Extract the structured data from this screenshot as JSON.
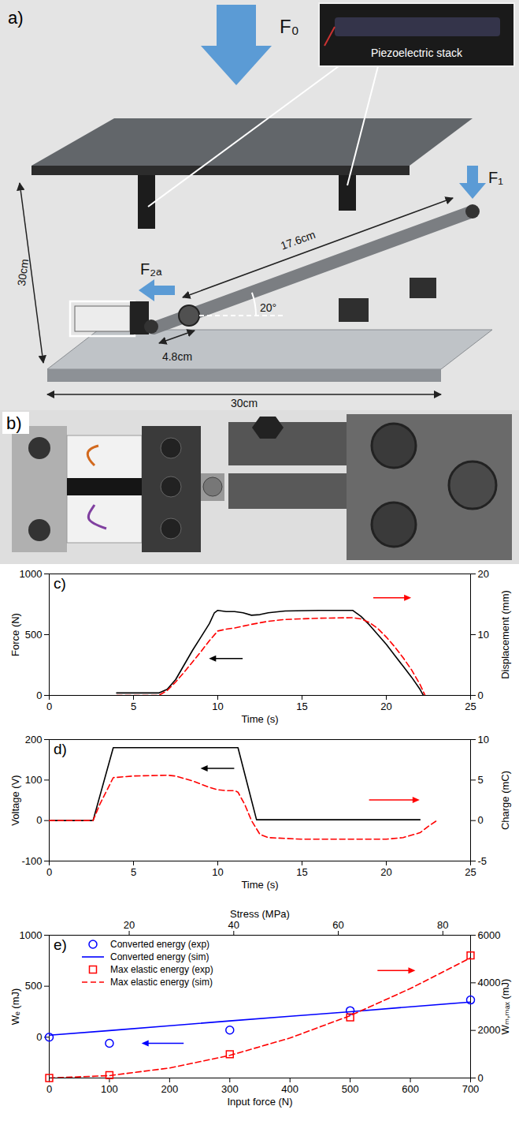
{
  "panel_a": {
    "letter": "a)",
    "force_labels": [
      "F₀",
      "F₁",
      "F₂ₐ"
    ],
    "inset_label": "Piezoelectric stack",
    "width_label": "30cm",
    "depth_label": "30cm",
    "long_arm_label": "17.6cm",
    "short_arm_label": "4.8cm",
    "angle_label": "20°"
  },
  "panel_b": {
    "letter": "b)"
  },
  "chart_data": [
    {
      "panel_label": "c)",
      "type": "line",
      "xlabel": "Time (s)",
      "xlim": [
        0,
        25
      ],
      "xticks": [
        0,
        5,
        10,
        15,
        20,
        25
      ],
      "ylabel": "Force (N)",
      "ylim": [
        0,
        1000
      ],
      "yticks": [
        0,
        500,
        1000
      ],
      "y2label": "Displacement (mm)",
      "y2lim": [
        0,
        20
      ],
      "y2ticks": [
        0,
        10,
        20
      ],
      "series": [
        {
          "color": "#000000",
          "line_style": "solid",
          "x": [
            4,
            6.5,
            7,
            7.5,
            8,
            8.5,
            9,
            9.5,
            9.8,
            10,
            10.5,
            11,
            11.5,
            12,
            12.5,
            13,
            14,
            16,
            18,
            18.5,
            19,
            19.5,
            20,
            20.5,
            21,
            21.5,
            22,
            22.2
          ],
          "values": [
            20,
            20,
            50,
            130,
            250,
            370,
            480,
            590,
            680,
            700,
            690,
            690,
            680,
            660,
            665,
            680,
            695,
            700,
            700,
            650,
            580,
            500,
            420,
            330,
            240,
            150,
            50,
            0
          ]
        },
        {
          "color": "#ff0000",
          "line_style": "dashed",
          "axis": "y2",
          "x": [
            4,
            6.5,
            7,
            7.5,
            8,
            8.5,
            9,
            9.5,
            10,
            10.5,
            11,
            12,
            13,
            14,
            16,
            18,
            18.5,
            19,
            19.5,
            20,
            20.5,
            21,
            21.5,
            22,
            22.3
          ],
          "values": [
            0,
            0,
            0.8,
            2.2,
            3.8,
            5.5,
            7.2,
            9,
            10.6,
            10.9,
            11.1,
            11.7,
            12.2,
            12.5,
            12.7,
            12.8,
            12.6,
            12,
            11,
            9.6,
            8,
            6.2,
            4.2,
            1.8,
            0
          ]
        }
      ]
    },
    {
      "panel_label": "d)",
      "type": "line",
      "xlabel": "Time (s)",
      "xlim": [
        0,
        25
      ],
      "xticks": [
        0,
        5,
        10,
        15,
        20,
        25
      ],
      "ylabel": "Voltage (V)",
      "ylim": [
        -100,
        200
      ],
      "yticks": [
        -100,
        0,
        100,
        200
      ],
      "y2label": "Charge (mC)",
      "y2lim": [
        -5,
        10
      ],
      "y2ticks": [
        -5,
        0,
        5,
        10
      ],
      "series": [
        {
          "color": "#000000",
          "line_style": "solid",
          "x": [
            0,
            2.6,
            3.8,
            11.2,
            12.3,
            22
          ],
          "values": [
            0,
            0,
            180,
            180,
            2,
            2
          ]
        },
        {
          "color": "#ff0000",
          "line_style": "dashed",
          "axis": "y2",
          "x": [
            0,
            2.6,
            3,
            3.8,
            5,
            7,
            7.5,
            8,
            8.5,
            9,
            9.5,
            10,
            10.5,
            11,
            11.2,
            11.6,
            12,
            12.5,
            13,
            15,
            20,
            21,
            22,
            22.5,
            23
          ],
          "values": [
            0,
            0,
            2,
            5.3,
            5.5,
            5.6,
            5.5,
            5.2,
            4.9,
            4.5,
            4.1,
            3.8,
            3.7,
            3.7,
            3.5,
            2,
            0,
            -1.7,
            -2.1,
            -2.3,
            -2.3,
            -2.1,
            -1.5,
            -0.7,
            0
          ]
        }
      ]
    },
    {
      "panel_label": "e)",
      "type": "line",
      "legend": "upper left",
      "xlabel": "Input force (N)",
      "xlim": [
        0,
        700
      ],
      "xticks": [
        0,
        100,
        200,
        300,
        400,
        500,
        600,
        700
      ],
      "x2label": "Stress (MPa)",
      "x2lim": [
        4.7,
        85.3
      ],
      "x2ticks": [
        20,
        40,
        60,
        80
      ],
      "ylabel": "Wₑ (mJ)",
      "ylim": [
        -400,
        1000
      ],
      "yticks": [
        0,
        500,
        1000
      ],
      "y2label": "Wₘ,ₘₐₓ (mJ)",
      "y2lim": [
        0,
        6000
      ],
      "y2ticks": [
        0,
        2000,
        4000,
        6000
      ],
      "series": [
        {
          "name": "Converted energy (exp)",
          "type": "scatter",
          "marker": "circle",
          "color": "#0000ff",
          "x": [
            0,
            100,
            300,
            500,
            700
          ],
          "values": [
            0,
            -60,
            70,
            260,
            365
          ]
        },
        {
          "name": "Converted energy (sim)",
          "type": "line",
          "line_style": "solid",
          "color": "#0000ff",
          "x": [
            0,
            100,
            200,
            300,
            400,
            500,
            600,
            700
          ],
          "values": [
            20,
            65,
            112,
            160,
            205,
            250,
            298,
            345
          ]
        },
        {
          "name": "Max elastic energy (exp)",
          "type": "scatter",
          "marker": "square",
          "color": "#ff0000",
          "axis": "y2",
          "x": [
            0,
            100,
            300,
            500,
            700
          ],
          "values": [
            0,
            120,
            1000,
            2550,
            5150
          ]
        },
        {
          "name": "Max elastic energy (sim)",
          "type": "line",
          "line_style": "dashed",
          "color": "#ff0000",
          "axis": "y2",
          "x": [
            0,
            100,
            200,
            300,
            400,
            500,
            600,
            700
          ],
          "values": [
            0,
            100,
            420,
            950,
            1680,
            2620,
            3760,
            5050
          ]
        }
      ]
    }
  ]
}
